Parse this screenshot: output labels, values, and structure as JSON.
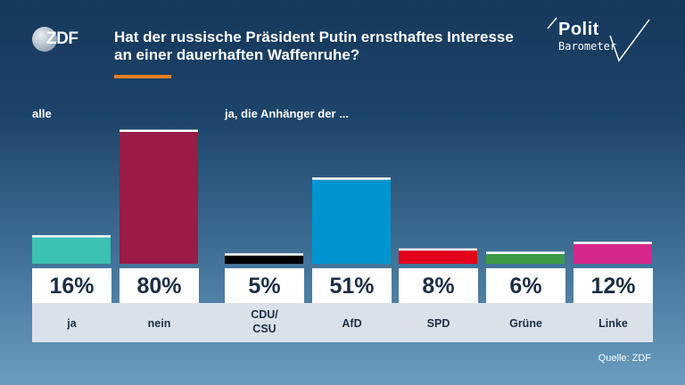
{
  "branding": {
    "broadcaster_logo": "ZDF",
    "show_logo_line1": "Polit",
    "show_logo_line2": "Barometer"
  },
  "headline": "Hat der russische Präsident Putin ernsthaftes Interesse an einer dauerhaften Waffenruhe?",
  "source": "Quelle: ZDF",
  "colors": {
    "accent": "#f07d1e",
    "ja": "#3cc1b2",
    "nein": "#9b1a47",
    "CDU/CSU": "#000000",
    "AfD": "#0095d0",
    "SPD": "#e3001b",
    "Grüne": "#3c9c46",
    "Linke": "#d6288a"
  },
  "chart_data": {
    "type": "bar",
    "ylim": [
      0,
      80
    ],
    "groups": [
      {
        "label": "alle",
        "categories": [
          "ja",
          "nein"
        ],
        "values": [
          16,
          80
        ],
        "value_labels": [
          "16%",
          "80%"
        ]
      },
      {
        "label": "ja, die Anhänger der ...",
        "categories": [
          "CDU/\nCSU",
          "AfD",
          "SPD",
          "Grüne",
          "Linke"
        ],
        "values": [
          5,
          51,
          8,
          6,
          12
        ],
        "value_labels": [
          "5%",
          "51%",
          "8%",
          "6%",
          "12%"
        ]
      }
    ]
  }
}
